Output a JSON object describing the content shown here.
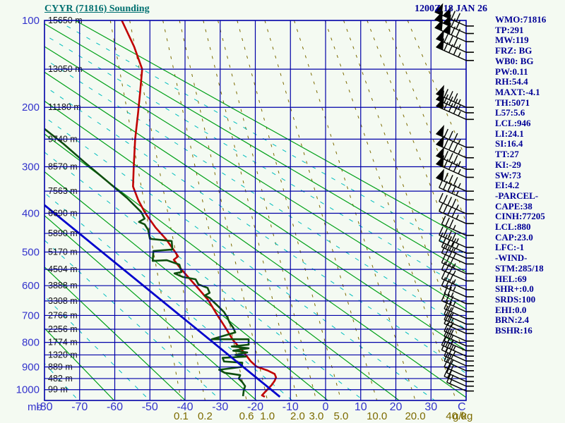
{
  "title": "CYYR (71816) Sounding",
  "datetime": "1200Z 18 JAN 26",
  "stats_panel": {
    "lines": [
      "WMO:71816",
      "TP:291",
      "MW:119",
      "FRZ: BG",
      "WB0: BG",
      "PW:0.11",
      "RH:54.4",
      "MAXT:-4.1",
      "TH:5071",
      "L57:5.6",
      "LCL:946",
      "LI:24.1",
      "SI:16.4",
      "TT:27",
      "KI:-29",
      "SW:73",
      "EI:4.2",
      "-PARCEL-",
      "CAPE:38",
      "CINH:77205",
      "LCL:880",
      "CAP:23.0",
      "LFC:-1",
      "-WIND-",
      "STM:285/18",
      "HEL:69",
      "SHR+:0.0",
      "SRDS:100",
      "EHI:0.0",
      "BRN:2.4",
      "BSHR:16"
    ]
  },
  "axes": {
    "pressure_unit": "mb",
    "temperature_unit": "C",
    "mixing_unit": "g/kg",
    "pressure_tick_labels": [
      100,
      200,
      300,
      400,
      500,
      600,
      700,
      800,
      900,
      1000
    ],
    "temperature_tick_labels": [
      -80,
      -70,
      -60,
      -50,
      -40,
      -30,
      -20,
      -10,
      0,
      10,
      20,
      30
    ],
    "mixing_ratio_labels": [
      "0.1",
      "0.2",
      "0.6",
      "1.0",
      "2.0",
      "3.0",
      "5.0",
      "10.0",
      "20.0",
      "40.0"
    ]
  },
  "height_labels": [
    {
      "p": 100,
      "label": "15650 m"
    },
    {
      "p": 150,
      "label": "13050 m"
    },
    {
      "p": 200,
      "label": "11180 m"
    },
    {
      "p": 250,
      "label": "9740 m"
    },
    {
      "p": 300,
      "label": "8570 m"
    },
    {
      "p": 350,
      "label": "7563 m"
    },
    {
      "p": 400,
      "label": "6690 m"
    },
    {
      "p": 450,
      "label": "5890 m"
    },
    {
      "p": 500,
      "label": "5170 m"
    },
    {
      "p": 550,
      "label": "4504 m"
    },
    {
      "p": 600,
      "label": "3888 m"
    },
    {
      "p": 650,
      "label": "3308 m"
    },
    {
      "p": 700,
      "label": "2766 m"
    },
    {
      "p": 750,
      "label": "2256 m"
    },
    {
      "p": 800,
      "label": "1774 m"
    },
    {
      "p": 850,
      "label": "1320 m"
    },
    {
      "p": 900,
      "label": "889 m"
    },
    {
      "p": 950,
      "label": "482 m"
    },
    {
      "p": 1000,
      "label": "99 m"
    }
  ],
  "colors": {
    "background": "#f4faf2",
    "grid": "#0000a8",
    "axis_labels": "#3333cc",
    "height_labels": "#111111",
    "dry_adiabat": "#00a018",
    "moist_adiabat": "#00bebe",
    "mixing_ratio": "#7d6b00",
    "temperature_curve": "#c00000",
    "dewpoint_curve": "#0e4f0e",
    "parcel_line": "#0000cd",
    "wind_barbs": "#000000",
    "title": "#007070",
    "header_text": "#000096"
  },
  "chart_data": {
    "type": "line",
    "diagram": "stuve-sounding",
    "title": "CYYR (71816) Sounding",
    "x_axis": {
      "label": "C",
      "min": -80,
      "max": 40,
      "tick_step": 10
    },
    "y_axis": {
      "label": "mb",
      "min": 100,
      "max": 1050,
      "scale": "p^0.286",
      "gridline_step_mb": 50
    },
    "mixing_ratio_lines_gkg": [
      0.1,
      0.2,
      0.6,
      1.0,
      2.0,
      3.0,
      5.0,
      10.0,
      20.0,
      40.0
    ],
    "unlabeled_mixing_lines_gkg": [
      60,
      100,
      150,
      250
    ],
    "dry_adiabats_theta_K": [
      190,
      210,
      230,
      250,
      270,
      290,
      310,
      330,
      350,
      370,
      390
    ],
    "moist_adiabats_theta_K": [
      200,
      220,
      240,
      260,
      280,
      300,
      320,
      340,
      360,
      380
    ],
    "series": [
      {
        "name": "temperature",
        "units": [
          "mb",
          "C"
        ],
        "points": [
          [
            100,
            -58
          ],
          [
            125,
            -54.5
          ],
          [
            150,
            -52.2
          ],
          [
            180,
            -52.8
          ],
          [
            210,
            -53.4
          ],
          [
            250,
            -54.2
          ],
          [
            300,
            -54.6
          ],
          [
            340,
            -54.8
          ],
          [
            370,
            -53.3
          ],
          [
            400,
            -51.3
          ],
          [
            435,
            -48.4
          ],
          [
            465,
            -45.4
          ],
          [
            500,
            -42.8
          ],
          [
            512,
            -42.0
          ],
          [
            522,
            -43.2
          ],
          [
            548,
            -41.2
          ],
          [
            577,
            -38.8
          ],
          [
            612,
            -36.0
          ],
          [
            647,
            -33.4
          ],
          [
            695,
            -31.0
          ],
          [
            740,
            -28.7
          ],
          [
            792,
            -26.3
          ],
          [
            832,
            -23.7
          ],
          [
            876,
            -21.3
          ],
          [
            898,
            -19.7
          ],
          [
            915,
            -16.5
          ],
          [
            930,
            -14.5
          ],
          [
            945,
            -14.1
          ],
          [
            960,
            -14.5
          ],
          [
            978,
            -15.3
          ],
          [
            995,
            -16.3
          ],
          [
            1012,
            -17.3
          ],
          [
            1026,
            -18.1
          ],
          [
            1033,
            -17.3
          ]
        ]
      },
      {
        "name": "dewpoint",
        "units": [
          "mb",
          "C"
        ],
        "points": [
          [
            233,
            -80
          ],
          [
            258,
            -74.6
          ],
          [
            292,
            -68.5
          ],
          [
            327,
            -62.5
          ],
          [
            365,
            -56.5
          ],
          [
            397,
            -52.5
          ],
          [
            413,
            -51.5
          ],
          [
            421,
            -53.1
          ],
          [
            427,
            -51.5
          ],
          [
            441,
            -50.5
          ],
          [
            464,
            -50.0
          ],
          [
            470,
            -43.8
          ],
          [
            493,
            -43.6
          ],
          [
            497,
            -49.0
          ],
          [
            525,
            -49.2
          ],
          [
            523,
            -45.2
          ],
          [
            536,
            -41.6
          ],
          [
            558,
            -41.0
          ],
          [
            562,
            -43.0
          ],
          [
            573,
            -40.6
          ],
          [
            580,
            -37.0
          ],
          [
            596,
            -36.2
          ],
          [
            607,
            -33.6
          ],
          [
            623,
            -33.0
          ],
          [
            632,
            -34.4
          ],
          [
            640,
            -33.0
          ],
          [
            654,
            -31.8
          ],
          [
            671,
            -30.3
          ],
          [
            688,
            -28.9
          ],
          [
            708,
            -27.9
          ],
          [
            726,
            -27.3
          ],
          [
            744,
            -26.3
          ],
          [
            762,
            -25.7
          ],
          [
            788,
            -32.4
          ],
          [
            788,
            -21.9
          ],
          [
            809,
            -21.9
          ],
          [
            816,
            -26.7
          ],
          [
            823,
            -21.9
          ],
          [
            833,
            -26.3
          ],
          [
            840,
            -22.3
          ],
          [
            850,
            -25.7
          ],
          [
            857,
            -22.7
          ],
          [
            862,
            -29.3
          ],
          [
            877,
            -28.9
          ],
          [
            882,
            -23.7
          ],
          [
            900,
            -23.9
          ],
          [
            912,
            -30.3
          ],
          [
            925,
            -28.7
          ],
          [
            935,
            -24.3
          ],
          [
            950,
            -24.7
          ],
          [
            966,
            -23.7
          ],
          [
            984,
            -22.9
          ],
          [
            1005,
            -23.3
          ],
          [
            1030,
            -23.5
          ]
        ]
      },
      {
        "name": "parcel",
        "units": [
          "mb",
          "C"
        ],
        "points": [
          [
            381,
            -80
          ],
          [
            1033,
            -13.0
          ]
        ]
      }
    ],
    "wind_barbs": [
      {
        "p": 105,
        "kind": "p2"
      },
      {
        "p": 112,
        "kind": "p2"
      },
      {
        "p": 120,
        "kind": "p2"
      },
      {
        "p": 131,
        "kind": "p1"
      },
      {
        "p": 140,
        "kind": "p1"
      },
      {
        "p": 200,
        "kind": "p1"
      },
      {
        "p": 208,
        "kind": "p1"
      },
      {
        "p": 218,
        "kind": "p1"
      },
      {
        "p": 264,
        "kind": "p1"
      },
      {
        "p": 283,
        "kind": "p1"
      },
      {
        "p": 305,
        "kind": "p1"
      },
      {
        "p": 321,
        "kind": "p1"
      },
      {
        "p": 350,
        "kind": "p1"
      },
      {
        "p": 369,
        "kind": "b4"
      },
      {
        "p": 401,
        "kind": "b4"
      },
      {
        "p": 425,
        "kind": "b4"
      },
      {
        "p": 455,
        "kind": "b3"
      },
      {
        "p": 487,
        "kind": "b4"
      },
      {
        "p": 503,
        "kind": "b4"
      },
      {
        "p": 517,
        "kind": "b3"
      },
      {
        "p": 534,
        "kind": "b3"
      },
      {
        "p": 563,
        "kind": "b3"
      },
      {
        "p": 585,
        "kind": "b3"
      },
      {
        "p": 613,
        "kind": "b3"
      },
      {
        "p": 636,
        "kind": "b3"
      },
      {
        "p": 659,
        "kind": "b2"
      },
      {
        "p": 687,
        "kind": "b3"
      },
      {
        "p": 711,
        "kind": "b2"
      },
      {
        "p": 731,
        "kind": "b2"
      },
      {
        "p": 751,
        "kind": "b2"
      },
      {
        "p": 766,
        "kind": "b2"
      },
      {
        "p": 795,
        "kind": "b2"
      },
      {
        "p": 814,
        "kind": "b2"
      },
      {
        "p": 833,
        "kind": "b2"
      },
      {
        "p": 855,
        "kind": "b3"
      },
      {
        "p": 875,
        "kind": "b3"
      },
      {
        "p": 895,
        "kind": "b2"
      },
      {
        "p": 916,
        "kind": "b2"
      },
      {
        "p": 942,
        "kind": "b2"
      },
      {
        "p": 963,
        "kind": "b1"
      },
      {
        "p": 984,
        "kind": "b2"
      },
      {
        "p": 1006,
        "kind": "b1"
      }
    ]
  }
}
